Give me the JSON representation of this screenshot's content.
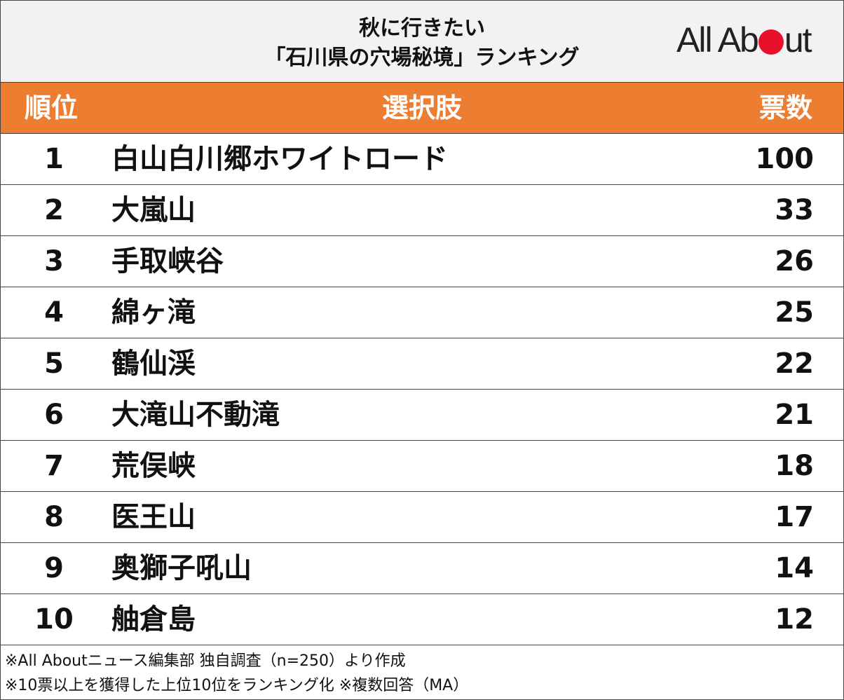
{
  "title": {
    "line1": "秋に行きたい",
    "line2": "「石川県の穴場秘境」ランキング"
  },
  "logo": {
    "text_pre": "All Ab",
    "text_post": "ut",
    "brand_color": "#e8102a"
  },
  "header": {
    "rank": "順位",
    "choice": "選択肢",
    "votes": "票数",
    "color": "#ed7d31"
  },
  "rows": [
    {
      "rank": "1",
      "name": "白山白川郷ホワイトロード",
      "votes": "100"
    },
    {
      "rank": "2",
      "name": "大嵐山",
      "votes": "33"
    },
    {
      "rank": "3",
      "name": "手取峡谷",
      "votes": "26"
    },
    {
      "rank": "4",
      "name": "綿ヶ滝",
      "votes": "25"
    },
    {
      "rank": "5",
      "name": "鶴仙渓",
      "votes": "22"
    },
    {
      "rank": "6",
      "name": "大滝山不動滝",
      "votes": "21"
    },
    {
      "rank": "7",
      "name": "荒俣峡",
      "votes": "18"
    },
    {
      "rank": "8",
      "name": "医王山",
      "votes": "17"
    },
    {
      "rank": "9",
      "name": "奥獅子吼山",
      "votes": "14"
    },
    {
      "rank": "10",
      "name": "舳倉島",
      "votes": "12"
    }
  ],
  "notes": [
    "※All Aboutニュース編集部 独自調査（n=250）より作成",
    "※10票以上を獲得した上位10位をランキング化 ※複数回答（MA）"
  ]
}
